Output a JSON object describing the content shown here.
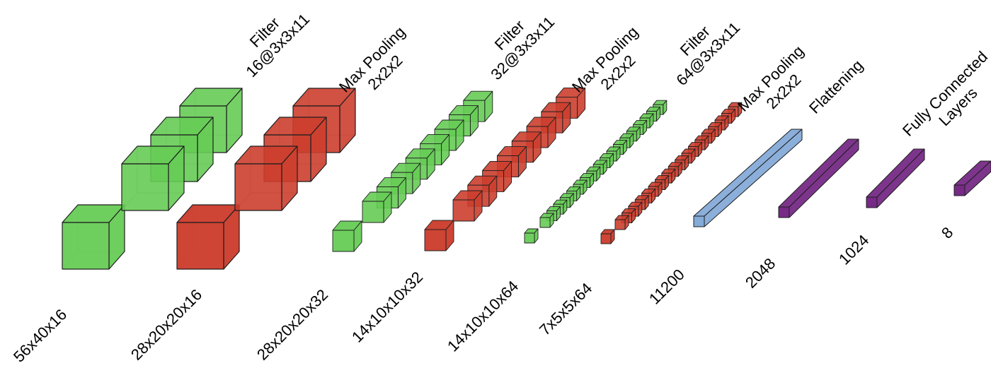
{
  "colors": {
    "conv": "#66cc55",
    "pool": "#cc3e2e",
    "flatten": "#7ea6d6",
    "dense": "#762a86",
    "edge": "#1f1f1f"
  },
  "shapes": [
    "56x40x16",
    "28x20x20x16",
    "28x20x20x32",
    "14x10x10x32",
    "14x10x10x64",
    "7x5x5x64",
    "11200",
    "2048",
    "1024",
    "8"
  ],
  "operations": [
    {
      "lines": [
        "Filter",
        "16@3x3x11"
      ]
    },
    {
      "lines": [
        "Max Pooling",
        "2x2x2"
      ]
    },
    {
      "lines": [
        "Filter",
        "32@3x3x11"
      ]
    },
    {
      "lines": [
        "Max Pooling",
        "2x2x2"
      ]
    },
    {
      "lines": [
        "Filter",
        "64@3x3x11"
      ]
    },
    {
      "lines": [
        "Max Pooling",
        "2x2x2"
      ]
    },
    {
      "lines": [
        "Flattening"
      ]
    },
    {
      "lines": [
        "Fully Connected",
        "Layers"
      ]
    }
  ]
}
